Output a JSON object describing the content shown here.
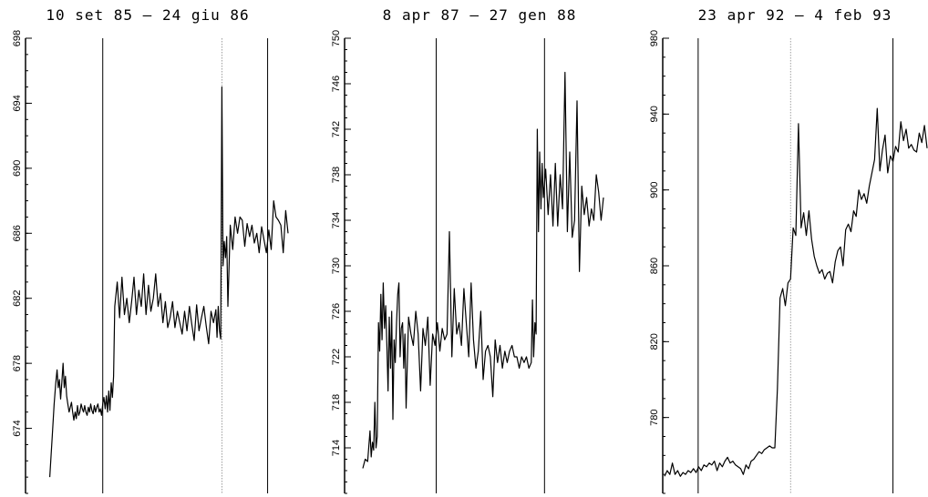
{
  "chart_data": [
    {
      "type": "line",
      "title": "10 set 85 – 24 giu 86",
      "xlabel": "",
      "ylabel": "",
      "ylim": [
        670,
        698
      ],
      "yticks": [
        674,
        678,
        682,
        686,
        690,
        694,
        698
      ],
      "vlines": [
        {
          "x": 0.23,
          "style": "solid"
        },
        {
          "x": 0.725,
          "style": "dotted"
        },
        {
          "x": 0.915,
          "style": "solid"
        }
      ],
      "x": [
        0.01,
        0.02,
        0.028,
        0.035,
        0.04,
        0.045,
        0.05,
        0.055,
        0.06,
        0.065,
        0.07,
        0.075,
        0.08,
        0.085,
        0.09,
        0.095,
        0.1,
        0.105,
        0.11,
        0.115,
        0.12,
        0.125,
        0.13,
        0.135,
        0.14,
        0.145,
        0.15,
        0.155,
        0.16,
        0.165,
        0.17,
        0.175,
        0.18,
        0.185,
        0.19,
        0.195,
        0.2,
        0.205,
        0.21,
        0.215,
        0.22,
        0.225,
        0.23,
        0.235,
        0.24,
        0.245,
        0.25,
        0.255,
        0.26,
        0.265,
        0.27,
        0.275,
        0.28,
        0.29,
        0.3,
        0.31,
        0.32,
        0.33,
        0.34,
        0.35,
        0.36,
        0.37,
        0.38,
        0.39,
        0.4,
        0.41,
        0.42,
        0.43,
        0.44,
        0.45,
        0.46,
        0.47,
        0.48,
        0.49,
        0.5,
        0.51,
        0.52,
        0.53,
        0.54,
        0.55,
        0.56,
        0.57,
        0.58,
        0.59,
        0.6,
        0.61,
        0.62,
        0.63,
        0.64,
        0.65,
        0.66,
        0.67,
        0.68,
        0.69,
        0.7,
        0.705,
        0.71,
        0.715,
        0.72,
        0.725,
        0.73,
        0.735,
        0.74,
        0.745,
        0.75,
        0.76,
        0.77,
        0.78,
        0.79,
        0.8,
        0.81,
        0.82,
        0.83,
        0.84,
        0.85,
        0.86,
        0.87,
        0.88,
        0.89,
        0.9,
        0.91,
        0.92,
        0.93,
        0.94,
        0.95,
        0.96,
        0.97,
        0.98,
        0.99,
        1.0
      ],
      "y": [
        671.0,
        673.5,
        675.5,
        676.8,
        677.6,
        676.5,
        677.0,
        675.8,
        676.8,
        678.0,
        676.5,
        677.2,
        676.0,
        675.5,
        675.0,
        675.3,
        675.6,
        675.0,
        674.5,
        675.0,
        674.6,
        675.4,
        674.8,
        675.0,
        675.5,
        675.2,
        675.0,
        675.4,
        675.0,
        674.8,
        675.3,
        675.0,
        675.5,
        675.1,
        674.9,
        675.4,
        675.0,
        675.3,
        675.5,
        675.0,
        675.2,
        674.8,
        675.5,
        675.9,
        675.2,
        676.0,
        675.0,
        676.3,
        675.1,
        676.8,
        675.9,
        677.2,
        681.5,
        683.0,
        680.8,
        683.3,
        681.0,
        682.0,
        680.5,
        681.8,
        683.3,
        681.0,
        682.5,
        681.5,
        683.5,
        681.0,
        682.8,
        681.2,
        682.0,
        683.5,
        681.5,
        682.3,
        680.5,
        681.8,
        680.2,
        680.8,
        681.8,
        680.2,
        681.2,
        680.5,
        679.8,
        681.2,
        680.0,
        681.5,
        680.4,
        679.4,
        681.6,
        680.0,
        680.8,
        681.5,
        680.3,
        679.2,
        681.2,
        680.5,
        681.3,
        679.6,
        681.5,
        680.0,
        679.5,
        695.0,
        684.0,
        685.5,
        684.5,
        685.8,
        681.5,
        686.5,
        685.0,
        687.0,
        686.0,
        687.0,
        686.8,
        685.2,
        686.6,
        685.8,
        686.5,
        685.4,
        686.0,
        684.8,
        686.4,
        685.6,
        684.8,
        686.2,
        685.0,
        688.0,
        687.0,
        686.8,
        686.5,
        684.8,
        687.4,
        686.0
      ]
    },
    {
      "type": "line",
      "title": "8 apr 87 – 27 gen 88",
      "xlabel": "",
      "ylabel": "",
      "ylim": [
        710,
        750
      ],
      "yticks": [
        714,
        718,
        722,
        726,
        730,
        734,
        738,
        742,
        746,
        750
      ],
      "vlines": [
        {
          "x": 0.305,
          "style": "solid"
        },
        {
          "x": 0.755,
          "style": "solid"
        }
      ],
      "x": [
        0.0,
        0.01,
        0.02,
        0.03,
        0.035,
        0.04,
        0.045,
        0.05,
        0.055,
        0.06,
        0.065,
        0.07,
        0.075,
        0.08,
        0.085,
        0.09,
        0.095,
        0.1,
        0.105,
        0.11,
        0.115,
        0.12,
        0.125,
        0.13,
        0.135,
        0.14,
        0.145,
        0.15,
        0.155,
        0.16,
        0.165,
        0.17,
        0.175,
        0.18,
        0.19,
        0.2,
        0.21,
        0.22,
        0.23,
        0.24,
        0.25,
        0.26,
        0.27,
        0.28,
        0.29,
        0.3,
        0.31,
        0.32,
        0.33,
        0.34,
        0.35,
        0.36,
        0.37,
        0.38,
        0.39,
        0.4,
        0.41,
        0.42,
        0.43,
        0.44,
        0.45,
        0.46,
        0.47,
        0.48,
        0.49,
        0.5,
        0.51,
        0.52,
        0.53,
        0.54,
        0.55,
        0.56,
        0.57,
        0.58,
        0.59,
        0.6,
        0.61,
        0.62,
        0.63,
        0.64,
        0.65,
        0.66,
        0.67,
        0.68,
        0.69,
        0.7,
        0.705,
        0.71,
        0.715,
        0.72,
        0.725,
        0.73,
        0.735,
        0.74,
        0.745,
        0.75,
        0.76,
        0.77,
        0.78,
        0.79,
        0.8,
        0.81,
        0.82,
        0.83,
        0.84,
        0.85,
        0.86,
        0.87,
        0.88,
        0.89,
        0.9,
        0.91,
        0.92,
        0.93,
        0.94,
        0.95,
        0.96,
        0.97,
        0.98,
        0.99,
        1.0
      ],
      "y": [
        712.2,
        713.0,
        712.8,
        715.5,
        713.2,
        714.5,
        713.8,
        718.0,
        714.0,
        715.0,
        725.0,
        722.5,
        727.5,
        723.5,
        728.5,
        724.5,
        726.5,
        723.0,
        719.0,
        725.5,
        721.0,
        726.0,
        716.5,
        723.5,
        721.5,
        725.0,
        727.5,
        728.5,
        722.0,
        724.5,
        725.0,
        721.0,
        724.0,
        717.5,
        725.5,
        724.0,
        723.0,
        726.0,
        724.0,
        719.0,
        724.5,
        723.0,
        725.5,
        719.5,
        724.0,
        723.0,
        725.0,
        722.5,
        724.5,
        723.5,
        724.0,
        733.0,
        722.0,
        728.0,
        724.0,
        725.0,
        723.0,
        728.0,
        725.0,
        722.0,
        728.5,
        723.5,
        721.0,
        722.5,
        726.0,
        720.0,
        722.5,
        723.0,
        722.0,
        718.5,
        723.5,
        721.5,
        723.0,
        721.0,
        722.5,
        721.5,
        722.5,
        723.0,
        722.0,
        722.0,
        721.0,
        722.0,
        721.5,
        722.0,
        721.0,
        721.5,
        727.0,
        722.0,
        725.0,
        724.0,
        742.0,
        733.0,
        740.0,
        735.0,
        739.0,
        736.0,
        738.5,
        734.5,
        738.0,
        733.5,
        739.0,
        733.5,
        738.0,
        735.0,
        747.0,
        733.0,
        740.0,
        732.5,
        734.0,
        744.5,
        729.5,
        737.0,
        734.5,
        736.0,
        733.5,
        735.0,
        734.0,
        738.0,
        736.5,
        734.0,
        736.0
      ]
    },
    {
      "type": "line",
      "title": "23 apr 92 – 4 feb 93",
      "xlabel": "",
      "ylabel": "",
      "ylim": [
        740,
        980
      ],
      "yticks": [
        780,
        820,
        860,
        900,
        940,
        980
      ],
      "vlines": [
        {
          "x": 0.128,
          "style": "solid"
        },
        {
          "x": 0.48,
          "style": "dotted"
        },
        {
          "x": 0.87,
          "style": "solid"
        }
      ],
      "x": [
        0.0,
        0.01,
        0.02,
        0.03,
        0.04,
        0.05,
        0.06,
        0.07,
        0.08,
        0.09,
        0.1,
        0.11,
        0.12,
        0.13,
        0.14,
        0.15,
        0.16,
        0.17,
        0.18,
        0.19,
        0.2,
        0.21,
        0.22,
        0.23,
        0.24,
        0.25,
        0.26,
        0.27,
        0.28,
        0.29,
        0.3,
        0.31,
        0.32,
        0.33,
        0.34,
        0.35,
        0.36,
        0.37,
        0.38,
        0.39,
        0.4,
        0.41,
        0.42,
        0.43,
        0.44,
        0.45,
        0.46,
        0.47,
        0.48,
        0.49,
        0.5,
        0.51,
        0.52,
        0.53,
        0.54,
        0.55,
        0.56,
        0.57,
        0.58,
        0.59,
        0.6,
        0.61,
        0.62,
        0.63,
        0.64,
        0.65,
        0.66,
        0.67,
        0.68,
        0.69,
        0.7,
        0.71,
        0.72,
        0.73,
        0.74,
        0.75,
        0.76,
        0.77,
        0.78,
        0.79,
        0.8,
        0.81,
        0.82,
        0.83,
        0.84,
        0.85,
        0.86,
        0.87,
        0.88,
        0.89,
        0.9,
        0.91,
        0.92,
        0.93,
        0.94,
        0.95,
        0.96,
        0.97,
        0.98,
        0.99,
        1.0
      ],
      "y": [
        749,
        752,
        750,
        756,
        750,
        752,
        749,
        751,
        750,
        752,
        751,
        753,
        751,
        754,
        752,
        755,
        754,
        756,
        755,
        757,
        752,
        756,
        754,
        757,
        759,
        756,
        757,
        755,
        754,
        753,
        750,
        755,
        753,
        757,
        758,
        760,
        762,
        761,
        763,
        764,
        765,
        764,
        764,
        795,
        843,
        848,
        839,
        851,
        853,
        880,
        876,
        935,
        880,
        888,
        876,
        889,
        874,
        865,
        860,
        856,
        858,
        853,
        856,
        857,
        851,
        862,
        868,
        870,
        860,
        879,
        882,
        878,
        889,
        886,
        900,
        895,
        898,
        893,
        902,
        909,
        916,
        943,
        910,
        921,
        929,
        909,
        918,
        915,
        923,
        920,
        936,
        926,
        932,
        922,
        924,
        921,
        920,
        930,
        925,
        934,
        922
      ]
    }
  ]
}
